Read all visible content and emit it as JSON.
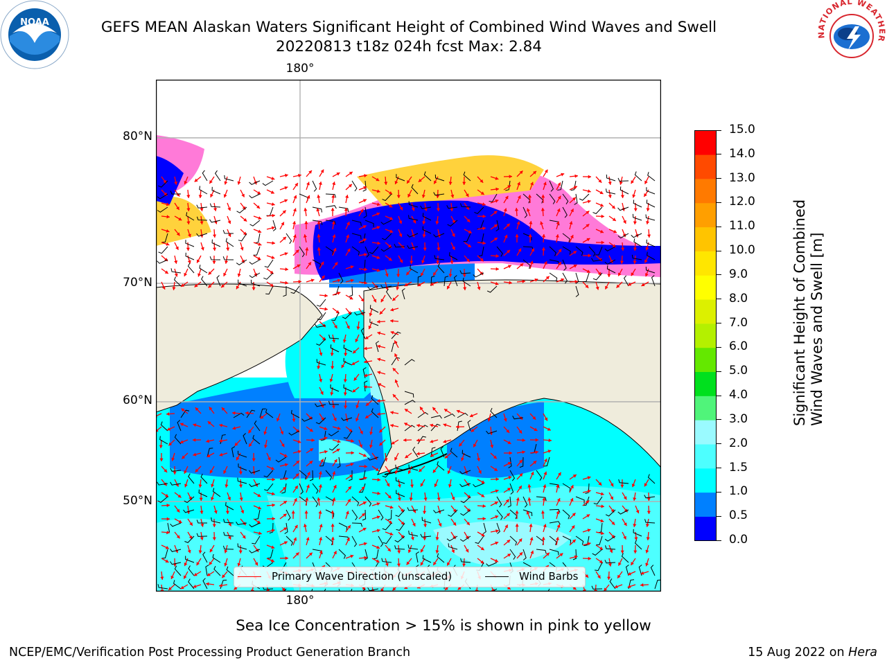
{
  "header": {
    "title_line1": "GEFS MEAN Alaskan Waters Significant Height of Combined Wind Waves and Swell",
    "title_line2": "20220813 t18z 024h fcst   Max: 2.84"
  },
  "logos": {
    "left": {
      "text": "NOAA",
      "icon": "noaa-logo-icon",
      "color": "#0a5fad"
    },
    "right": {
      "text": "NATIONAL WEATHER SERVICE",
      "icon": "nws-logo-icon",
      "color": "#d8262e"
    }
  },
  "map": {
    "lat_labels": [
      "80°N",
      "70°N",
      "60°N",
      "50°N"
    ],
    "lon_label_top": "180°",
    "lon_label_bottom": "180°",
    "colors": {
      "land": "#efecdc",
      "ocean_mid": "#00ffff",
      "ocean_light": "#9afaff",
      "ocean_low": "#0080ff",
      "ocean_calm": "#0000ff",
      "ice_pink": "#ff7ad8",
      "ice_yellow": "#ffd23c",
      "wave_arrow": "#ff0000",
      "wind_barb": "#000000"
    }
  },
  "legend": {
    "wave_label": "Primary Wave Direction (unscaled)",
    "wind_label": "Wind Barbs"
  },
  "colorbar": {
    "title_line1": "Significant Height of Combined",
    "title_line2": "Wind Waves and Swell [m]",
    "ticks": [
      "0.0",
      "0.5",
      "1.0",
      "1.5",
      "2.0",
      "3.0",
      "4.0",
      "5.0",
      "6.0",
      "7.0",
      "8.0",
      "9.0",
      "10.0",
      "11.0",
      "12.0",
      "13.0",
      "14.0",
      "15.0"
    ],
    "colors": [
      "#0000ff",
      "#0080ff",
      "#00ffff",
      "#4dffff",
      "#9afaff",
      "#50f47a",
      "#00e01e",
      "#64e800",
      "#b4f000",
      "#dcf000",
      "#ffff00",
      "#ffe600",
      "#ffc400",
      "#ff9f00",
      "#ff7a00",
      "#ff4a00",
      "#ff0000"
    ]
  },
  "note": "Sea Ice Concentration > 15% is shown in pink to yellow",
  "footer": {
    "left": "NCEP/EMC/Verification Post Processing Product Generation Branch",
    "right_date": "15 Aug 2022 on",
    "right_host": "Hera"
  }
}
